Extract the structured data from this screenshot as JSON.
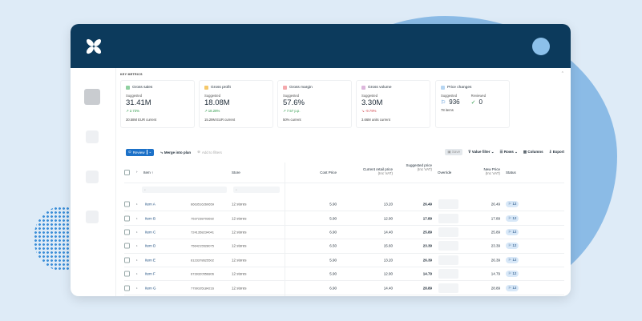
{
  "colors": {
    "header": "#0c3a5c",
    "accent": "#1c71c8",
    "up": "#2e9a4a",
    "down": "#d0454c"
  },
  "metrics": {
    "title": "KEY METRICS",
    "cards": [
      {
        "label": "Gross sales",
        "color": "#8fd0a0",
        "suggested": "Suggested",
        "value": "31.41M",
        "delta": "↗ 2.73%",
        "dir": "up",
        "current": "30.58M EUR current"
      },
      {
        "label": "Gross profit",
        "color": "#f5c86a",
        "suggested": "Suggested",
        "value": "18.08M",
        "delta": "↗ 18.28%",
        "dir": "up",
        "current": "15.29M EUR current"
      },
      {
        "label": "Gross margin",
        "color": "#f4a8ac",
        "suggested": "Suggested",
        "value": "57.6%",
        "delta": "↗ 7.57 p.p.",
        "dir": "up",
        "current": "50% current"
      },
      {
        "label": "Gross volume",
        "color": "#dcb6dc",
        "suggested": "Suggested",
        "value": "3.30M",
        "delta": "↘ -9.79%",
        "dir": "down",
        "current": "3.66M units current"
      }
    ],
    "price_changes": {
      "label": "Price changes",
      "color": "#b5d5f2",
      "suggested": "Suggested",
      "suggested_value": "936",
      "reviewed": "Reviewed",
      "reviewed_value": "0",
      "items": "78 items"
    }
  },
  "toolbar": {
    "review": "Review",
    "merge": "Merge into plan",
    "add_filters": "Add to filters",
    "save": "Save",
    "value_filter": "Value filter",
    "rows": "Rows",
    "columns": "Columns",
    "export": "Export"
  },
  "table": {
    "headers": {
      "item": "Item",
      "store": "Store",
      "cost": "Cost Price",
      "retail": "Current retail price",
      "retail_sub": "(Inc VAT)",
      "suggested": "Suggested price",
      "suggested_sub": "(Inc VAT)",
      "override": "Override",
      "new_price": "New Price",
      "new_price_sub": "(Inc VAT)",
      "status": "Status"
    },
    "rows": [
      {
        "item": "Item A",
        "code": "6663516260659",
        "store": "12 stores",
        "cost": "5.90",
        "retail": "13.20",
        "suggested": "26.49",
        "new_price": "26.49",
        "status": "12"
      },
      {
        "item": "Item B",
        "code": "7537238703692",
        "store": "12 stores",
        "cost": "5.90",
        "retail": "12.90",
        "suggested": "17.89",
        "new_price": "17.89",
        "status": "12"
      },
      {
        "item": "Item C",
        "code": "7241358234041",
        "store": "12 stores",
        "cost": "6.90",
        "retail": "14.40",
        "suggested": "25.89",
        "new_price": "25.89",
        "status": "12"
      },
      {
        "item": "Item D",
        "code": "7564215528075",
        "store": "12 stores",
        "cost": "6.50",
        "retail": "15.60",
        "suggested": "23.39",
        "new_price": "23.39",
        "status": "12"
      },
      {
        "item": "Item E",
        "code": "6123378625502",
        "store": "12 stores",
        "cost": "5.90",
        "retail": "13.20",
        "suggested": "26.39",
        "new_price": "26.39",
        "status": "12"
      },
      {
        "item": "Item F",
        "code": "6739320556806",
        "store": "12 stores",
        "cost": "5.90",
        "retail": "12.90",
        "suggested": "14.79",
        "new_price": "14.79",
        "status": "12"
      },
      {
        "item": "Item G",
        "code": "7799105184216",
        "store": "12 stores",
        "cost": "6.90",
        "retail": "14.40",
        "suggested": "28.89",
        "new_price": "28.89",
        "status": "12"
      }
    ]
  }
}
